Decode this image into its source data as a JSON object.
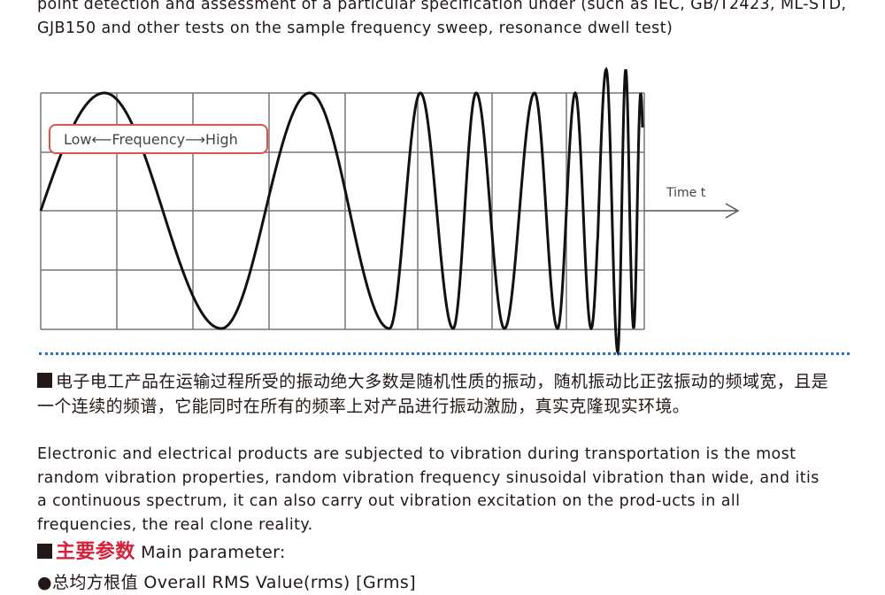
{
  "intro": {
    "text": "point detection and assessment of a particular specification under (such as IEC, GB/T2423, ML-STD, GJB150 and other tests on the sample frequency sweep, resonance dwell test)"
  },
  "figure": {
    "label": "Low⟵Frequency⟶High",
    "axis_label": "Time t",
    "label_border": "#d9534f"
  },
  "random": {
    "cn": "电子电工产品在运输过程所受的振动绝大多数是随机性质的振动，随机振动比正弦振动的频域宽，且是一个连续的频谱，它能同时在所有的频率上对产品进行振动激励，真实克隆现实环境。",
    "en": "Electronic and electrical products are subjected to vibration during transportation is the most random vibration properties, random vibration frequency sinusoidal vibration than wide, and itis a continuous spectrum, it can also carry out vibration excitation on the prod-ucts in all frequencies, the real clone reality."
  },
  "main_parameter": {
    "cn": "主要参数",
    "en": "Main parameter:",
    "first_item": "●总均方根值 Overall RMS Value(rms) [Grms]"
  },
  "colors": {
    "heading_red": "#d7213a",
    "divider_blue": "#2a6fc0"
  }
}
